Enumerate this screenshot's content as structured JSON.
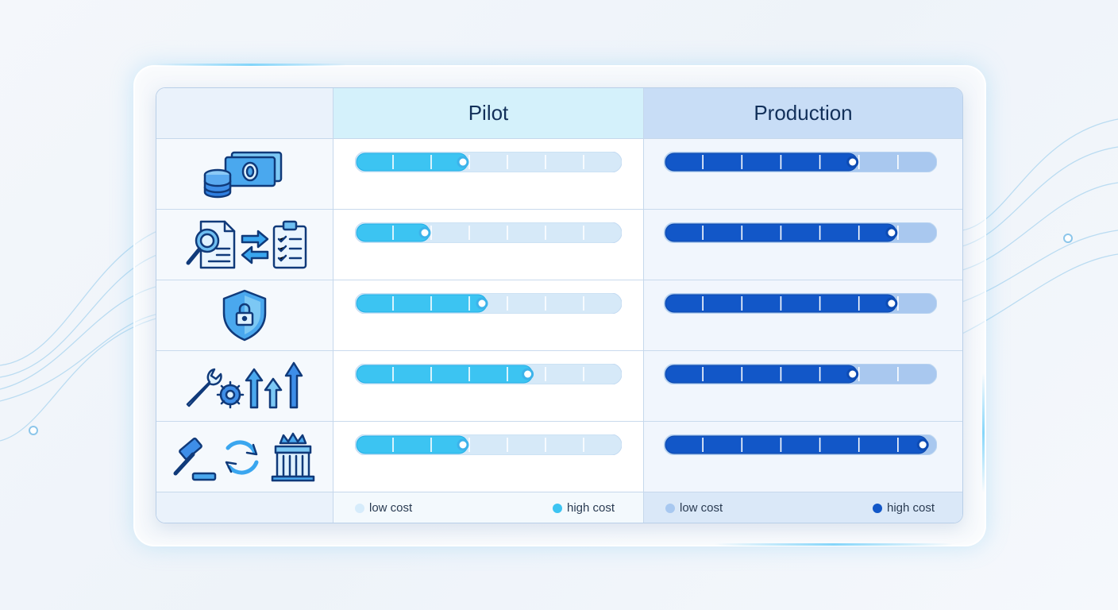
{
  "columns": {
    "pilot": {
      "title": "Pilot"
    },
    "production": {
      "title": "Production"
    }
  },
  "rows": [
    {
      "icon": "money-icon"
    },
    {
      "icon": "document-review-icon"
    },
    {
      "icon": "security-shield-icon"
    },
    {
      "icon": "maintenance-scaling-icon"
    },
    {
      "icon": "governance-icon"
    }
  ],
  "legend": {
    "low_label": "low cost",
    "high_label": "high cost",
    "pilot_low_color": "#d6ecfb",
    "pilot_high_color": "#3cc4f2",
    "production_low_color": "#a8c8f0",
    "production_high_color": "#1257c8"
  },
  "chart_data": {
    "type": "bar",
    "segments": 7,
    "scale": [
      0,
      7
    ],
    "series": [
      {
        "values": [
          3,
          2,
          3.5,
          4.7,
          3
        ]
      },
      {
        "values": [
          5,
          6,
          6,
          5,
          6.8
        ]
      }
    ]
  }
}
